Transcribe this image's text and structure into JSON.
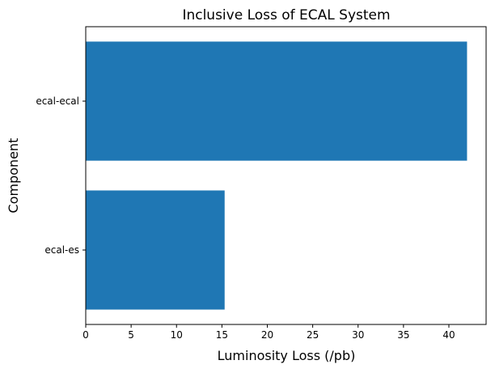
{
  "chart_data": {
    "type": "bar",
    "orientation": "horizontal",
    "title": "Inclusive Loss of ECAL System",
    "xlabel": "Luminosity Loss (/pb)",
    "ylabel": "Component",
    "categories": [
      "ecal-ecal",
      "ecal-es"
    ],
    "values": [
      42.0,
      15.3
    ],
    "xlim": [
      0,
      44.1
    ],
    "xticks": [
      0,
      5,
      10,
      15,
      20,
      25,
      30,
      35,
      40
    ],
    "grid": false,
    "legend": "none",
    "bar_color": "#1f77b4"
  }
}
